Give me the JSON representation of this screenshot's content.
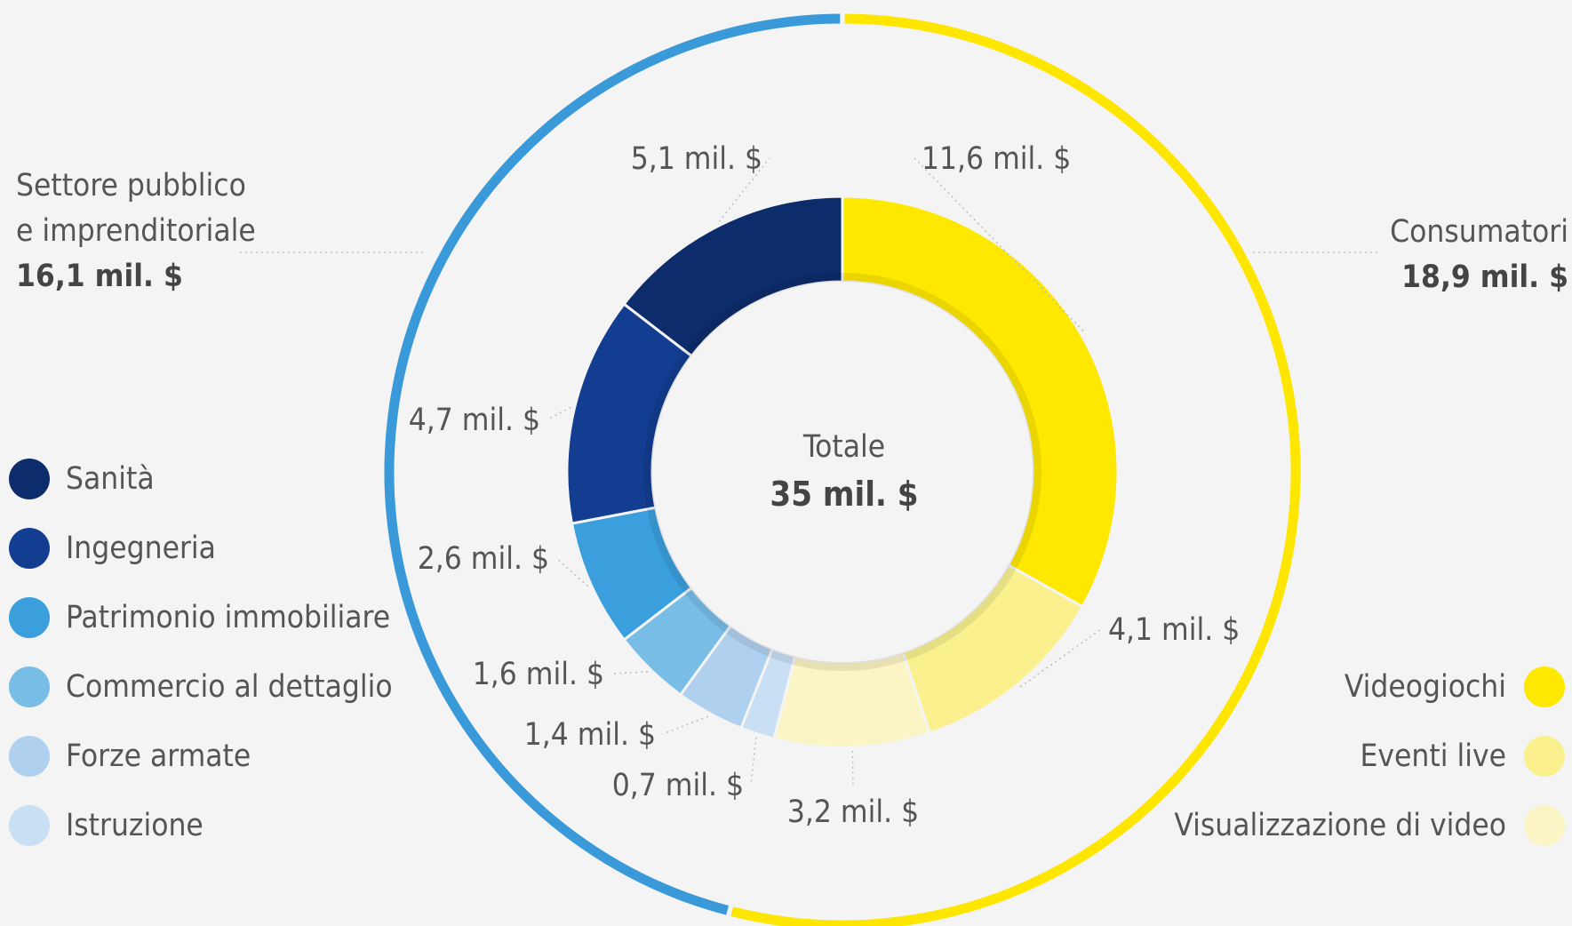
{
  "chart_data": {
    "type": "pie",
    "center": {
      "title": "Totale",
      "value": "35 mil. $"
    },
    "groups": [
      {
        "name_line1": "Settore pubblico",
        "name_line2": "e imprenditoriale",
        "value_label": "16,1 mil. $",
        "value": 16.1,
        "color": "#3a9ad9"
      },
      {
        "name_line1": "Consumatori",
        "name_line2": "",
        "value_label": "18,9 mil. $",
        "value": 18.9,
        "color": "#ffe600"
      }
    ],
    "segments": [
      {
        "name": "Videogiochi",
        "value": 11.6,
        "label": "11,6 mil. $",
        "color": "#ffe800",
        "group": 1
      },
      {
        "name": "Eventi live",
        "value": 4.1,
        "label": "4,1 mil. $",
        "color": "#faf18e",
        "group": 1
      },
      {
        "name": "Visualizzazione di video",
        "value": 3.2,
        "label": "3,2 mil. $",
        "color": "#fbf4c4",
        "group": 1
      },
      {
        "name": "Istruzione",
        "value": 0.7,
        "label": "0,7 mil. $",
        "color": "#c8dff4",
        "group": 0
      },
      {
        "name": "Forze armate",
        "value": 1.4,
        "label": "1,4 mil. $",
        "color": "#b0d0f0",
        "group": 0
      },
      {
        "name": "Commercio al dettaglio",
        "value": 1.6,
        "label": "1,6 mil. $",
        "color": "#78bde6",
        "group": 0
      },
      {
        "name": "Patrimonio immobiliare",
        "value": 2.6,
        "label": "2,6 mil. $",
        "color": "#3a9fdc",
        "group": 0
      },
      {
        "name": "Ingegneria",
        "value": 4.7,
        "label": "4,7 mil. $",
        "color": "#123d91",
        "group": 0
      },
      {
        "name": "Sanità",
        "value": 5.1,
        "label": "5,1 mil. $",
        "color": "#0d2c6b",
        "group": 0
      }
    ],
    "legend_left": [
      "Sanità",
      "Ingegneria",
      "Patrimonio immobiliare",
      "Commercio al dettaglio",
      "Forze armate",
      "Istruzione"
    ],
    "legend_right": [
      "Videogiochi",
      "Eventi live",
      "Visualizzazione di video"
    ]
  }
}
